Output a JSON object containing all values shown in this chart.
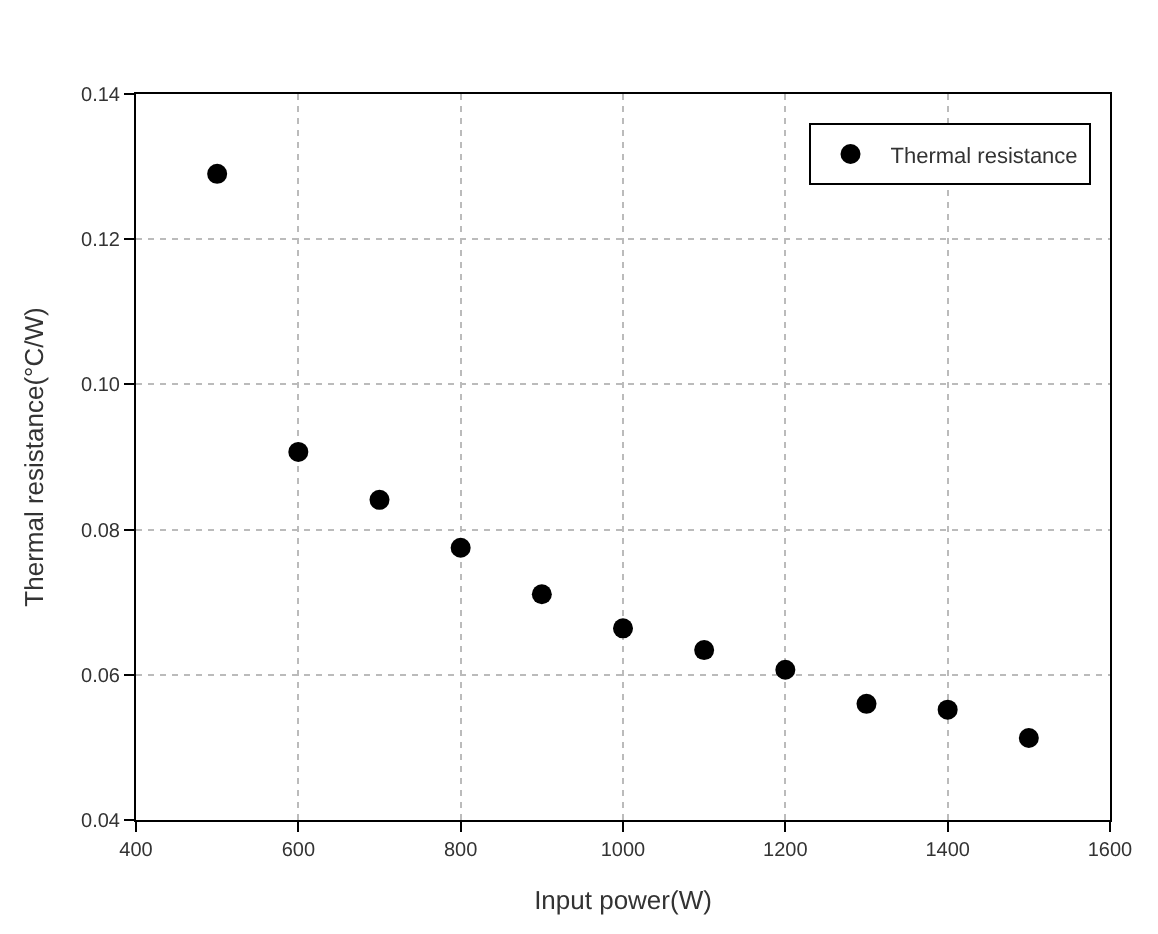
{
  "chart_data": {
    "type": "scatter",
    "xlabel": "Input power(W)",
    "ylabel": "Thermal resistance(°C/W)",
    "x": [
      500,
      600,
      700,
      800,
      900,
      1000,
      1100,
      1200,
      1300,
      1400,
      1500
    ],
    "series": [
      {
        "name": "Thermal resistance",
        "color": "#000000",
        "values": [
          0.129,
          0.0907,
          0.0841,
          0.0775,
          0.0711,
          0.0664,
          0.0634,
          0.0607,
          0.056,
          0.0552,
          0.0513
        ]
      }
    ],
    "xlim": [
      400,
      1600
    ],
    "xticks": [
      400,
      600,
      800,
      1000,
      1200,
      1400,
      1600
    ],
    "ylim": [
      0.04,
      0.14
    ],
    "yticks": [
      {
        "value": 0.04,
        "label": "0.04"
      },
      {
        "value": 0.06,
        "label": "0.06"
      },
      {
        "value": 0.08,
        "label": "0.08"
      },
      {
        "value": 0.1,
        "label": "0.10"
      },
      {
        "value": 0.12,
        "label": "0.12"
      },
      {
        "value": 0.14,
        "label": "0.14"
      }
    ],
    "grid": true,
    "legend": "top right",
    "marker": "circle"
  }
}
